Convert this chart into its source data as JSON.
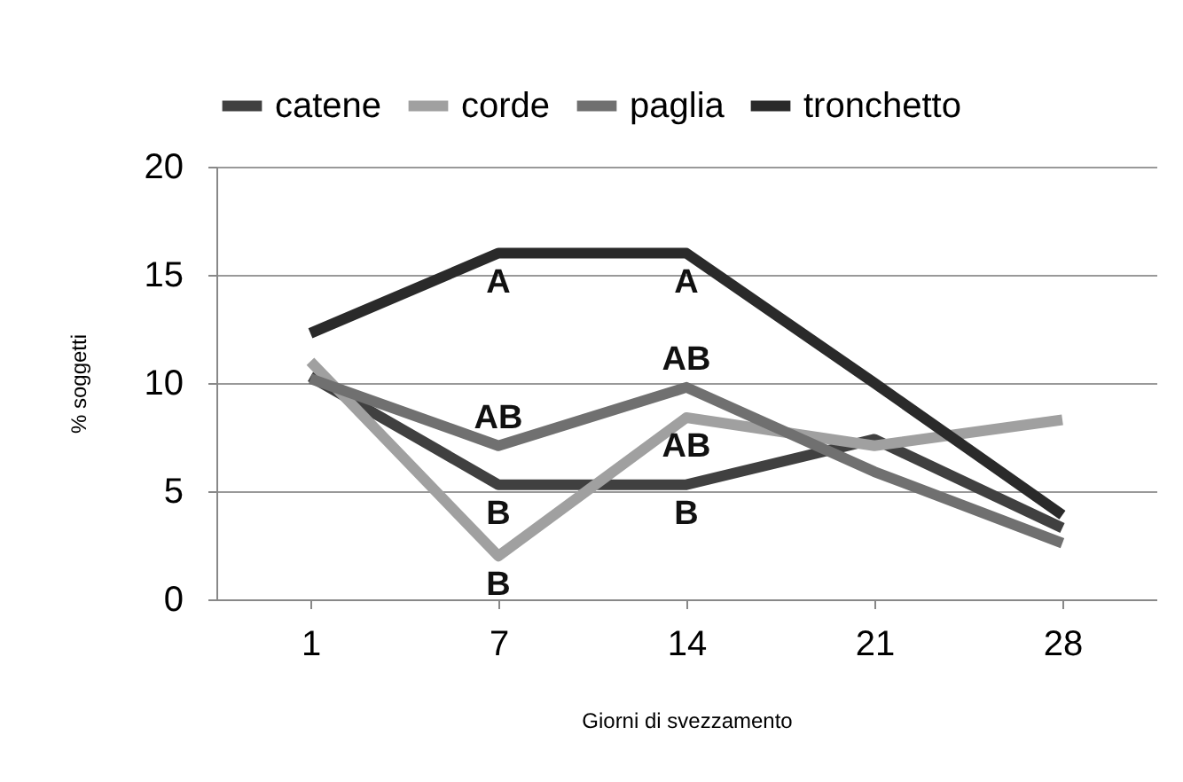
{
  "chart_data": {
    "type": "line",
    "xlabel": "Giorni di svezzamento",
    "ylabel": "% soggetti",
    "categories": [
      "1",
      "7",
      "14",
      "21",
      "28"
    ],
    "series": [
      {
        "name": "catene",
        "color": "#404040",
        "values": [
          10.3,
          5.3,
          5.3,
          7.4,
          3.3
        ]
      },
      {
        "name": "corde",
        "color": "#a0a0a0",
        "values": [
          11.0,
          2.0,
          8.4,
          7.1,
          8.3
        ]
      },
      {
        "name": "paglia",
        "color": "#707070",
        "values": [
          10.2,
          7.1,
          9.8,
          5.9,
          2.6
        ]
      },
      {
        "name": "tronchetto",
        "color": "#2a2a2a",
        "values": [
          12.3,
          16.0,
          16.0,
          10.0,
          3.9
        ]
      }
    ],
    "ylim": [
      0,
      20
    ],
    "yticks": [
      0,
      5,
      10,
      15,
      20
    ],
    "grid": "y",
    "legend": "top",
    "marker": "none",
    "line_style": "solid",
    "annotations": [
      {
        "text": "A",
        "x": "7",
        "y": 16.0
      },
      {
        "text": "A",
        "x": "14",
        "y": 16.0
      },
      {
        "text": "AB",
        "x": "7",
        "y": 7.1
      },
      {
        "text": "AB",
        "x": "14",
        "y": 9.8
      },
      {
        "text": "AB",
        "x": "14",
        "y": 8.4
      },
      {
        "text": "B",
        "x": "7",
        "y": 5.3
      },
      {
        "text": "B",
        "x": "14",
        "y": 5.3
      },
      {
        "text": "B",
        "x": "7",
        "y": 2.0
      }
    ]
  }
}
